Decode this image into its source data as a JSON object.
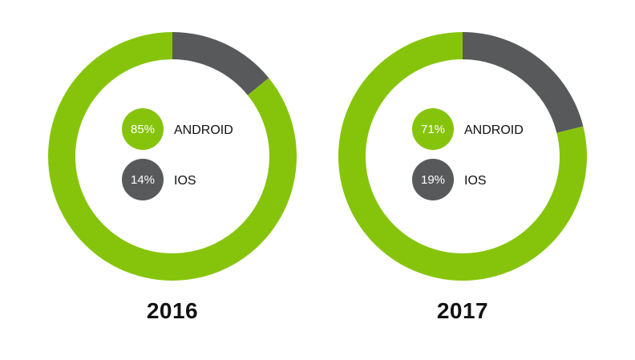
{
  "colors": {
    "android": "#86c40b",
    "ios": "#58595b",
    "background": "#ffffff",
    "text": "#111111"
  },
  "chart_data": [
    {
      "type": "pie",
      "title": "2016",
      "series": [
        {
          "name": "ANDROID",
          "label": "85%",
          "value": 85
        },
        {
          "name": "IOS",
          "label": "14%",
          "value": 14
        }
      ]
    },
    {
      "type": "pie",
      "title": "2017",
      "series": [
        {
          "name": "ANDROID",
          "label": "71%",
          "value": 71
        },
        {
          "name": "IOS",
          "label": "19%",
          "value": 19
        }
      ]
    }
  ]
}
